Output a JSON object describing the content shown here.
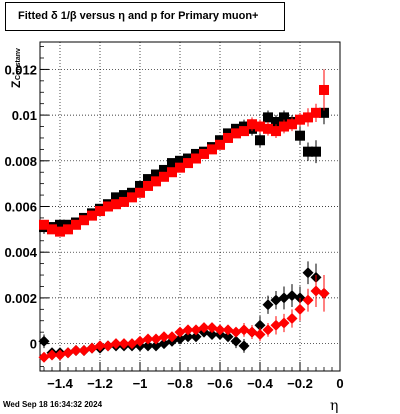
{
  "title": "Fitted δ 1/β versus η and p for Primary muon+",
  "footer_timestamp": "Wed Sep 18 16:34:32 2024",
  "axis_label_z": "Z",
  "axis_label_sub": "Constanv",
  "chart_data": {
    "type": "scatter",
    "xlabel": "η",
    "xlim": [
      -1.5,
      0.0
    ],
    "ylim": [
      -0.0012,
      0.0132
    ],
    "x_ticks": [
      {
        "v": -1.4,
        "label": "−1.4"
      },
      {
        "v": -1.2,
        "label": "−1.2"
      },
      {
        "v": -1.0,
        "label": "−1"
      },
      {
        "v": -0.8,
        "label": "−0.8"
      },
      {
        "v": -0.6,
        "label": "−0.6"
      },
      {
        "v": -0.4,
        "label": "−0.4"
      },
      {
        "v": -0.2,
        "label": "−0.2"
      },
      {
        "v": 0.0,
        "label": "0"
      }
    ],
    "y_ticks": [
      {
        "v": 0.0,
        "label": "0"
      },
      {
        "v": 0.002,
        "label": "0.002"
      },
      {
        "v": 0.004,
        "label": "0.004"
      },
      {
        "v": 0.006,
        "label": "0.006"
      },
      {
        "v": 0.008,
        "label": "0.008"
      },
      {
        "v": 0.01,
        "label": "0.01"
      },
      {
        "v": 0.012,
        "label": "0.012"
      }
    ],
    "grid": true,
    "series": [
      {
        "marker": "square",
        "color": "#000000",
        "x": [
          -1.48,
          -1.44,
          -1.4,
          -1.36,
          -1.32,
          -1.28,
          -1.24,
          -1.2,
          -1.16,
          -1.12,
          -1.08,
          -1.04,
          -1.0,
          -0.96,
          -0.92,
          -0.88,
          -0.84,
          -0.8,
          -0.76,
          -0.72,
          -0.68,
          -0.64,
          -0.6,
          -0.56,
          -0.52,
          -0.48,
          -0.44,
          -0.4,
          -0.36,
          -0.32,
          -0.28,
          -0.24,
          -0.2,
          -0.16,
          -0.12,
          -0.08
        ],
        "y": [
          0.0051,
          0.0051,
          0.0052,
          0.0052,
          0.0053,
          0.0055,
          0.0057,
          0.0059,
          0.0061,
          0.0064,
          0.0065,
          0.0066,
          0.0069,
          0.0072,
          0.0074,
          0.0076,
          0.0079,
          0.008,
          0.0081,
          0.0083,
          0.0084,
          0.0086,
          0.0089,
          0.0092,
          0.0094,
          0.0095,
          0.0094,
          0.0089,
          0.0099,
          0.0097,
          0.0099,
          0.0097,
          0.0091,
          0.0084,
          0.0084,
          0.0101
        ],
        "err": [
          0.0003,
          0.0002,
          0.0002,
          0.0002,
          0.0002,
          0.0002,
          0.0002,
          0.0002,
          0.0002,
          0.0002,
          0.0002,
          0.0002,
          0.0002,
          0.0002,
          0.0002,
          0.0002,
          0.0002,
          0.0002,
          0.0002,
          0.0002,
          0.0002,
          0.0002,
          0.0002,
          0.0002,
          0.0002,
          0.0003,
          0.0003,
          0.0003,
          0.0003,
          0.0003,
          0.0003,
          0.0003,
          0.0004,
          0.0004,
          0.0005,
          0.0005
        ]
      },
      {
        "marker": "square",
        "color": "#ff0000",
        "x": [
          -1.48,
          -1.44,
          -1.4,
          -1.36,
          -1.32,
          -1.28,
          -1.24,
          -1.2,
          -1.16,
          -1.12,
          -1.08,
          -1.04,
          -1.0,
          -0.96,
          -0.92,
          -0.88,
          -0.84,
          -0.8,
          -0.76,
          -0.72,
          -0.68,
          -0.64,
          -0.6,
          -0.56,
          -0.52,
          -0.48,
          -0.44,
          -0.4,
          -0.36,
          -0.32,
          -0.28,
          -0.24,
          -0.2,
          -0.16,
          -0.12,
          -0.08
        ],
        "y": [
          0.0052,
          0.005,
          0.0049,
          0.005,
          0.0052,
          0.0054,
          0.0056,
          0.0058,
          0.006,
          0.0061,
          0.0062,
          0.0064,
          0.0066,
          0.0069,
          0.0071,
          0.0073,
          0.0075,
          0.0077,
          0.0079,
          0.0081,
          0.0083,
          0.0085,
          0.0087,
          0.009,
          0.0092,
          0.0093,
          0.0096,
          0.0095,
          0.0094,
          0.0093,
          0.0095,
          0.0096,
          0.0098,
          0.0099,
          0.0101,
          0.0111
        ],
        "err": [
          0.0002,
          0.0002,
          0.0002,
          0.0002,
          0.0002,
          0.0002,
          0.0002,
          0.0002,
          0.0002,
          0.0002,
          0.0002,
          0.0002,
          0.0002,
          0.0002,
          0.0002,
          0.0002,
          0.0002,
          0.0002,
          0.0002,
          0.0002,
          0.0002,
          0.0002,
          0.0002,
          0.0002,
          0.0002,
          0.0002,
          0.0003,
          0.0003,
          0.0003,
          0.0003,
          0.0003,
          0.0003,
          0.0003,
          0.0004,
          0.0004,
          0.0009
        ]
      },
      {
        "marker": "diamond",
        "color": "#000000",
        "x": [
          -1.48,
          -1.44,
          -1.4,
          -1.36,
          -1.32,
          -1.28,
          -1.24,
          -1.2,
          -1.16,
          -1.12,
          -1.08,
          -1.04,
          -1.0,
          -0.96,
          -0.92,
          -0.88,
          -0.84,
          -0.8,
          -0.76,
          -0.72,
          -0.68,
          -0.64,
          -0.6,
          -0.56,
          -0.52,
          -0.48,
          -0.44,
          -0.4,
          -0.36,
          -0.32,
          -0.28,
          -0.24,
          -0.2,
          -0.16,
          -0.12,
          -0.08
        ],
        "y": [
          0.0001,
          -0.0004,
          -0.0004,
          -0.0004,
          -0.0003,
          -0.0003,
          -0.0002,
          -0.0002,
          -0.0001,
          -0.0001,
          -0.0001,
          -0.0001,
          -0.0001,
          -0.0001,
          -0.0001,
          0.0,
          0.0001,
          0.0002,
          0.0003,
          0.0003,
          0.0005,
          0.0004,
          0.0004,
          0.0003,
          0.0001,
          -0.0001,
          0.0005,
          0.0008,
          0.0017,
          0.0019,
          0.002,
          0.0021,
          0.002,
          0.0031,
          0.0029,
          0.0022
        ],
        "err": [
          0.0003,
          0.0002,
          0.0002,
          0.0002,
          0.0002,
          0.0002,
          0.0002,
          0.0002,
          0.0002,
          0.0002,
          0.0002,
          0.0002,
          0.0002,
          0.0002,
          0.0002,
          0.0002,
          0.0002,
          0.0002,
          0.0002,
          0.0002,
          0.0002,
          0.0002,
          0.0002,
          0.0002,
          0.0003,
          0.0003,
          0.0003,
          0.0004,
          0.0004,
          0.0004,
          0.0005,
          0.0005,
          0.0005,
          0.0005,
          0.0006,
          0.0006
        ]
      },
      {
        "marker": "diamond",
        "color": "#ff0000",
        "x": [
          -1.48,
          -1.44,
          -1.4,
          -1.36,
          -1.32,
          -1.28,
          -1.24,
          -1.2,
          -1.16,
          -1.12,
          -1.08,
          -1.04,
          -1.0,
          -0.96,
          -0.92,
          -0.88,
          -0.84,
          -0.8,
          -0.76,
          -0.72,
          -0.68,
          -0.64,
          -0.6,
          -0.56,
          -0.52,
          -0.48,
          -0.44,
          -0.4,
          -0.36,
          -0.32,
          -0.28,
          -0.24,
          -0.2,
          -0.16,
          -0.12,
          -0.08
        ],
        "y": [
          -0.0006,
          -0.0005,
          -0.0005,
          -0.0004,
          -0.0003,
          -0.0003,
          -0.0002,
          -0.0001,
          -0.0001,
          0.0,
          0.0,
          0.0,
          0.0001,
          0.0002,
          0.0002,
          0.0003,
          0.0003,
          0.0005,
          0.0006,
          0.0006,
          0.0007,
          0.0007,
          0.0006,
          0.0006,
          0.0005,
          0.0006,
          0.0005,
          0.0004,
          0.0006,
          0.0008,
          0.0009,
          0.0011,
          0.0015,
          0.0019,
          0.0023,
          0.0022
        ],
        "err": [
          0.0002,
          0.0002,
          0.0002,
          0.0002,
          0.0002,
          0.0002,
          0.0002,
          0.0002,
          0.0002,
          0.0002,
          0.0002,
          0.0002,
          0.0002,
          0.0002,
          0.0002,
          0.0002,
          0.0002,
          0.0002,
          0.0002,
          0.0002,
          0.0002,
          0.0002,
          0.0002,
          0.0002,
          0.0002,
          0.0003,
          0.0003,
          0.0003,
          0.0003,
          0.0004,
          0.0004,
          0.0004,
          0.0005,
          0.0005,
          0.0007,
          0.0008
        ]
      }
    ]
  }
}
